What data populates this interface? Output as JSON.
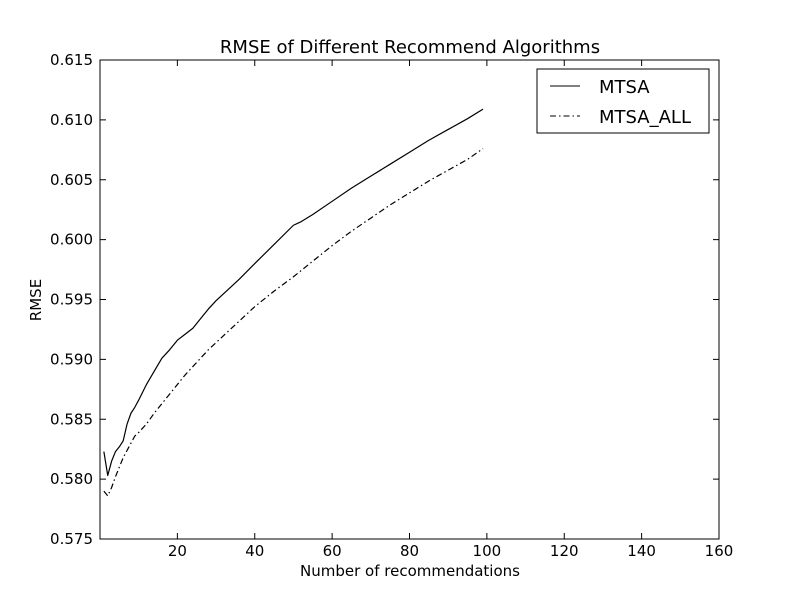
{
  "chart_data": {
    "type": "line",
    "title": "RMSE of Different Recommend Algorithms",
    "xlabel": "Number of recommendations",
    "ylabel": "RMSE",
    "xlim": [
      0,
      160
    ],
    "ylim": [
      0.575,
      0.615
    ],
    "x_ticks": [
      20,
      40,
      60,
      80,
      100,
      120,
      140,
      160
    ],
    "x_tick_labels": [
      "20",
      "40",
      "60",
      "80",
      "100",
      "120",
      "140",
      "160"
    ],
    "y_ticks": [
      0.575,
      0.58,
      0.585,
      0.59,
      0.595,
      0.6,
      0.605,
      0.61,
      0.615
    ],
    "y_tick_labels": [
      "0.575",
      "0.580",
      "0.585",
      "0.590",
      "0.595",
      "0.600",
      "0.605",
      "0.610",
      "0.615"
    ],
    "grid": false,
    "legend_position": "top-right",
    "series": [
      {
        "name": "MTSA",
        "line_style": "solid",
        "color": "#000000",
        "x": [
          1,
          2,
          3,
          4,
          5,
          6,
          7,
          8,
          9,
          10,
          12,
          14,
          16,
          18,
          20,
          22,
          24,
          26,
          28,
          30,
          33,
          36,
          40,
          45,
          50,
          52,
          55,
          60,
          65,
          70,
          75,
          80,
          85,
          90,
          95,
          99
        ],
        "y": [
          0.5823,
          0.5803,
          0.5815,
          0.5823,
          0.5827,
          0.5832,
          0.5846,
          0.5855,
          0.586,
          0.5866,
          0.5879,
          0.589,
          0.5901,
          0.5908,
          0.5916,
          0.5921,
          0.5926,
          0.5934,
          0.5942,
          0.5949,
          0.5958,
          0.5967,
          0.598,
          0.5996,
          0.6012,
          0.6015,
          0.6021,
          0.6032,
          0.6043,
          0.6053,
          0.6063,
          0.6073,
          0.6083,
          0.6092,
          0.6101,
          0.6109
        ]
      },
      {
        "name": "MTSA_ALL",
        "line_style": "dashdot",
        "color": "#000000",
        "x": [
          1,
          2,
          3,
          4,
          5,
          6,
          7,
          8,
          9,
          10,
          12,
          14,
          16,
          18,
          20,
          22,
          24,
          26,
          28,
          30,
          33,
          36,
          40,
          45,
          50,
          55,
          60,
          65,
          70,
          75,
          80,
          85,
          90,
          95,
          99
        ],
        "y": [
          0.579,
          0.5786,
          0.5793,
          0.5802,
          0.581,
          0.5818,
          0.5824,
          0.583,
          0.5836,
          0.5839,
          0.5846,
          0.5855,
          0.5863,
          0.5871,
          0.5879,
          0.5887,
          0.5894,
          0.5901,
          0.5908,
          0.5914,
          0.5923,
          0.5932,
          0.5944,
          0.5957,
          0.5969,
          0.5982,
          0.5995,
          0.6007,
          0.6018,
          0.6029,
          0.6039,
          0.6049,
          0.6058,
          0.6067,
          0.6076
        ]
      }
    ]
  }
}
